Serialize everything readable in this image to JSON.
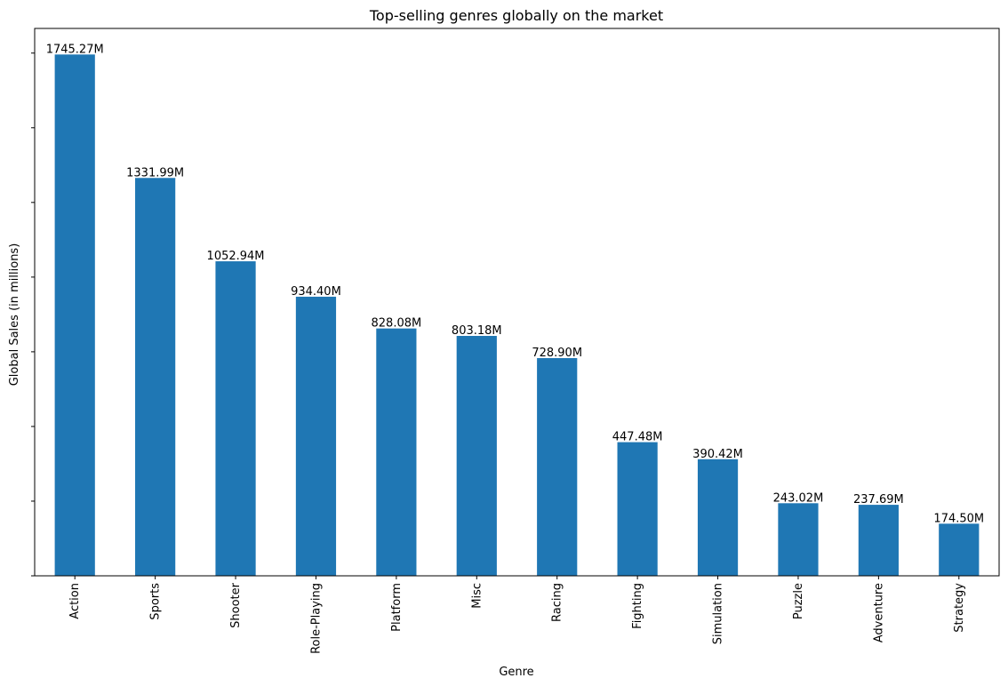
{
  "chart_data": {
    "type": "bar",
    "title": "Top-selling genres globally on the market",
    "xlabel": "Genre",
    "ylabel": "Global Sales (in millions)",
    "categories": [
      "Action",
      "Sports",
      "Shooter",
      "Role-Playing",
      "Platform",
      "Misc",
      "Racing",
      "Fighting",
      "Simulation",
      "Puzzle",
      "Adventure",
      "Strategy"
    ],
    "values": [
      1745.27,
      1331.99,
      1052.94,
      934.4,
      828.08,
      803.18,
      728.9,
      447.48,
      390.42,
      243.02,
      237.69,
      174.5
    ],
    "data_labels": [
      "1745.27M",
      "1331.99M",
      "1052.94M",
      "934.40M",
      "828.08M",
      "803.18M",
      "728.90M",
      "447.48M",
      "390.42M",
      "243.02M",
      "237.69M",
      "174.50M"
    ],
    "ylim": [
      0,
      1832.53
    ],
    "y_ticks": [
      0,
      250,
      500,
      750,
      1000,
      1250,
      1500,
      1750
    ],
    "y_tick_labels_visible": false,
    "grid": false,
    "bar_color": "#1f77b4"
  }
}
